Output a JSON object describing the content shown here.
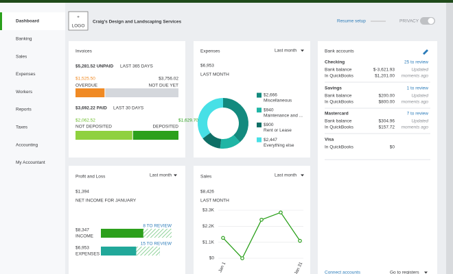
{
  "nav": [
    "Dashboard",
    "Banking",
    "Sales",
    "Expenses",
    "Workers",
    "Reports",
    "Taxes",
    "Accounting",
    "My Accountant"
  ],
  "header": {
    "logo_plus": "+",
    "logo": "LOGO",
    "company": "Craig's Design and Landscaping Services",
    "resume": "Resume setup",
    "privacy": "PRIVACY"
  },
  "invoices": {
    "title": "Invoices",
    "unpaid": "$5,281.52 UNPAID",
    "unpaid_period": "LAST 365 DAYS",
    "overdue": {
      "amount": "$1,525.50",
      "label": "OVERDUE",
      "value": 1525.5
    },
    "not_due": {
      "amount": "$3,756.02",
      "label": "NOT DUE YET",
      "value": 3756.02
    },
    "paid": "$3,692.22 PAID",
    "paid_period": "LAST 30 DAYS",
    "not_deposited": {
      "amount": "$2,062.52",
      "label": "NOT DEPOSITED",
      "value": 2062.52
    },
    "deposited": {
      "amount": "$1,629.70",
      "label": "DEPOSITED",
      "value": 1629.7
    }
  },
  "expenses": {
    "title": "Expenses",
    "period": "Last month",
    "amount": "$6,953",
    "caption": "LAST MONTH",
    "items": [
      {
        "label": "$2,666",
        "name": "Miscellaneous",
        "value": 2666,
        "color": "#138a7e"
      },
      {
        "label": "$940",
        "name": "Maintenance and ...",
        "value": 940,
        "color": "#1fb5a5"
      },
      {
        "label": "$900",
        "name": "Rent or Lease",
        "value": 900,
        "color": "#0e6f66"
      },
      {
        "label": "$2,447",
        "name": "Everything else",
        "value": 2447,
        "color": "#47e0e6"
      }
    ]
  },
  "bank": {
    "title": "Bank accounts",
    "accounts": [
      {
        "name": "Checking",
        "link": "25 to review",
        "rows": [
          [
            "Bank balance",
            "$-3,621.93"
          ],
          [
            "In QuickBooks",
            "$1,201.00"
          ]
        ],
        "note": [
          "Updated",
          "moments ago"
        ]
      },
      {
        "name": "Savings",
        "link": "1 to review",
        "rows": [
          [
            "Bank balance",
            "$200.00"
          ],
          [
            "In QuickBooks",
            "$800.00"
          ]
        ],
        "note": [
          "Updated",
          "moments ago"
        ]
      },
      {
        "name": "Mastercard",
        "link": "7 to review",
        "rows": [
          [
            "Bank balance",
            "$304.96"
          ],
          [
            "In QuickBooks",
            "$157.72"
          ]
        ],
        "note": [
          "Updated",
          "moments ago"
        ]
      },
      {
        "name": "Visa",
        "rows": [
          [
            "In QuickBooks",
            "$0"
          ]
        ]
      }
    ],
    "connect": "Connect accounts",
    "registers": "Go to registers"
  },
  "profit_loss": {
    "title": "Profit and Loss",
    "period": "Last month",
    "amount": "$1,394",
    "caption": "NET INCOME FOR JANUARY",
    "income": {
      "amount": "$8,347",
      "label": "INCOME",
      "value": 8347,
      "review": "8 TO REVIEW",
      "color": "#2ca01c"
    },
    "expenses": {
      "amount": "$6,953",
      "label": "EXPENSES",
      "value": 6953,
      "review": "15 TO REVIEW",
      "color": "#21a89a"
    }
  },
  "sales": {
    "title": "Sales",
    "period": "Last month",
    "amount": "$8,426",
    "caption": "LAST MONTH",
    "chart": {
      "type": "line",
      "categories": [
        "Jan 1",
        null,
        null,
        null,
        "Jan 31"
      ],
      "values": [
        1400,
        0,
        2650,
        3150,
        1200
      ],
      "color": "#2ca01c",
      "ylim": [
        0,
        3300
      ],
      "yticks": [
        {
          "value": 0,
          "label": "$0"
        },
        {
          "value": 1100,
          "label": "$1.1K"
        },
        {
          "value": 2200,
          "label": "$2.2K"
        },
        {
          "value": 3300,
          "label": "$3.3K"
        }
      ]
    }
  }
}
